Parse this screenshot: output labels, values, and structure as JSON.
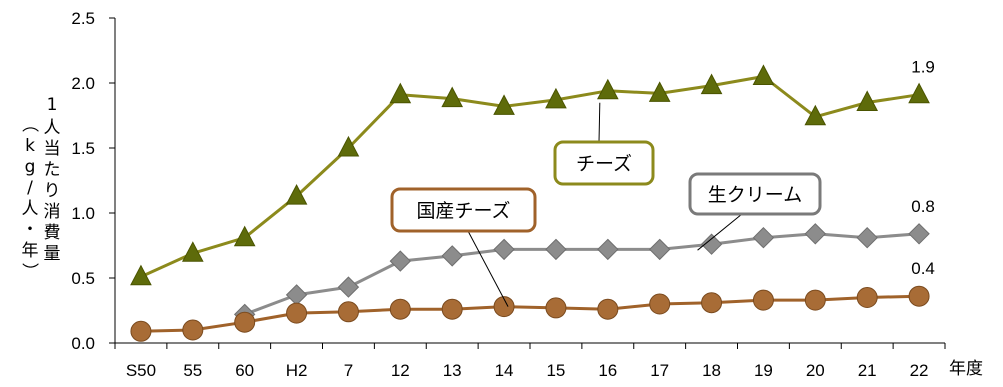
{
  "chart_data": {
    "type": "line",
    "categories": [
      "S50",
      "55",
      "60",
      "H2",
      "7",
      "12",
      "13",
      "14",
      "15",
      "16",
      "17",
      "18",
      "19",
      "20",
      "21",
      "22"
    ],
    "xlabel": "年度",
    "ylabel_left": "（kg/人・年）",
    "ylabel_right": "1人当たり消費量",
    "ylim": [
      0,
      2.5
    ],
    "yticks": [
      "0.0",
      "0.5",
      "1.0",
      "1.5",
      "2.0",
      "2.5"
    ],
    "grid": false,
    "series": [
      {
        "name": "チーズ",
        "marker": "triangle",
        "color": "#8c8a1c",
        "fill": "#5e6b0a",
        "values": [
          0.51,
          0.69,
          0.81,
          1.13,
          1.5,
          1.91,
          1.88,
          1.82,
          1.87,
          1.94,
          1.92,
          1.98,
          2.05,
          1.74,
          1.85,
          1.91
        ],
        "end_label": "1.9"
      },
      {
        "name": "生クリーム",
        "marker": "diamond",
        "color": "#8c8c8c",
        "fill": "#8c8c8c",
        "values": [
          null,
          null,
          0.22,
          0.37,
          0.43,
          0.63,
          0.67,
          0.72,
          0.72,
          0.72,
          0.72,
          0.76,
          0.81,
          0.84,
          0.81,
          0.84
        ],
        "end_label": "0.8"
      },
      {
        "name": "国産チーズ",
        "marker": "circle",
        "color": "#a0622a",
        "fill": "#a86c36",
        "values": [
          0.09,
          0.1,
          0.16,
          0.23,
          0.24,
          0.26,
          0.26,
          0.28,
          0.27,
          0.26,
          0.3,
          0.31,
          0.33,
          0.33,
          0.35,
          0.36
        ],
        "end_label": "0.4"
      }
    ]
  }
}
